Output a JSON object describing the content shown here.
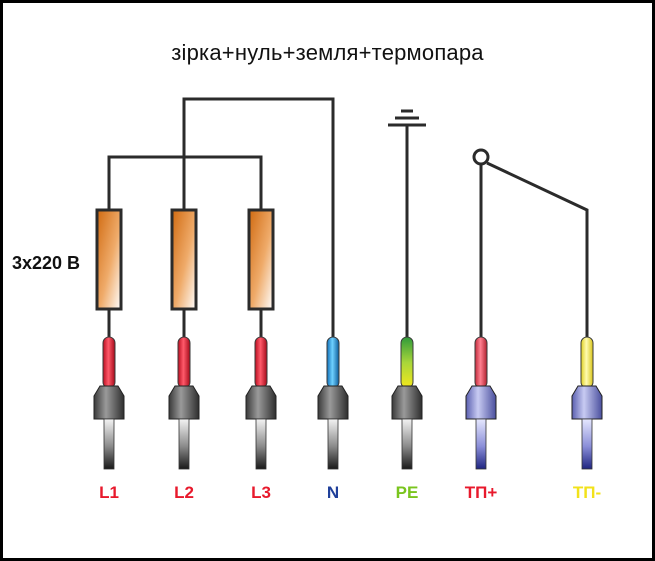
{
  "title": "зірка+нуль+земля+термопара",
  "voltage_label": "3x220 В",
  "terminals": [
    {
      "label": "L1",
      "color": "#e8192c"
    },
    {
      "label": "L2",
      "color": "#e8192c"
    },
    {
      "label": "L3",
      "color": "#e8192c"
    },
    {
      "label": "N",
      "color": "#1f3f9a"
    },
    {
      "label": "PE",
      "color": "#7ac51e"
    },
    {
      "label": "ТП+",
      "color": "#e8192c"
    },
    {
      "label": "ТП-",
      "color": "#f2e21a"
    }
  ],
  "colors": {
    "wire": "#2b2b2b",
    "heater": "#e07a1e",
    "phase_sleeve": "#e8192c",
    "neutral_sleeve": "#1e9be0",
    "earth_sleeve_top": "#3faa3a",
    "earth_sleeve_bottom": "#f2e21a",
    "thermo_plus_sleeve": "#e03a4a",
    "thermo_minus_sleeve": "#f2e45a",
    "plug_dark": "#4a4a4a",
    "plug_blue": "#7a7fd0"
  }
}
